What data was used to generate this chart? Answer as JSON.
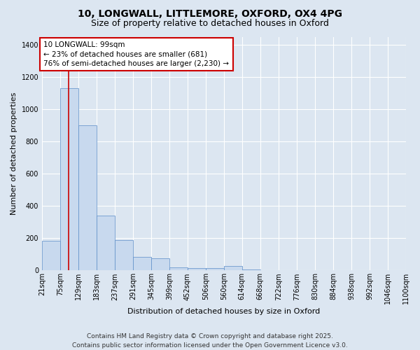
{
  "title_line1": "10, LONGWALL, LITTLEMORE, OXFORD, OX4 4PG",
  "title_line2": "Size of property relative to detached houses in Oxford",
  "xlabel": "Distribution of detached houses by size in Oxford",
  "ylabel": "Number of detached properties",
  "bar_color": "#c8d9ee",
  "bar_edge_color": "#5b8dc8",
  "background_color": "#dce6f1",
  "grid_color": "#ffffff",
  "bin_labels": [
    "21sqm",
    "75sqm",
    "129sqm",
    "183sqm",
    "237sqm",
    "291sqm",
    "345sqm",
    "399sqm",
    "452sqm",
    "506sqm",
    "560sqm",
    "614sqm",
    "668sqm",
    "722sqm",
    "776sqm",
    "830sqm",
    "884sqm",
    "938sqm",
    "992sqm",
    "1046sqm",
    "1100sqm"
  ],
  "bar_values": [
    185,
    1130,
    900,
    340,
    190,
    85,
    75,
    20,
    15,
    15,
    30,
    5,
    2,
    1,
    1,
    1,
    0,
    0,
    0,
    0
  ],
  "bin_edges": [
    21,
    75,
    129,
    183,
    237,
    291,
    345,
    399,
    452,
    506,
    560,
    614,
    668,
    722,
    776,
    830,
    884,
    938,
    992,
    1046,
    1100
  ],
  "property_size": 99,
  "red_line_color": "#cc0000",
  "annotation_line1": "10 LONGWALL: 99sqm",
  "annotation_line2": "← 23% of detached houses are smaller (681)",
  "annotation_line3": "76% of semi-detached houses are larger (2,230) →",
  "annotation_box_color": "#ffffff",
  "annotation_border_color": "#cc0000",
  "ylim": [
    0,
    1450
  ],
  "yticks": [
    0,
    200,
    400,
    600,
    800,
    1000,
    1200,
    1400
  ],
  "footer_line1": "Contains HM Land Registry data © Crown copyright and database right 2025.",
  "footer_line2": "Contains public sector information licensed under the Open Government Licence v3.0.",
  "title_fontsize": 10,
  "subtitle_fontsize": 9,
  "axis_label_fontsize": 8,
  "tick_fontsize": 7,
  "annotation_fontsize": 7.5,
  "footer_fontsize": 6.5
}
